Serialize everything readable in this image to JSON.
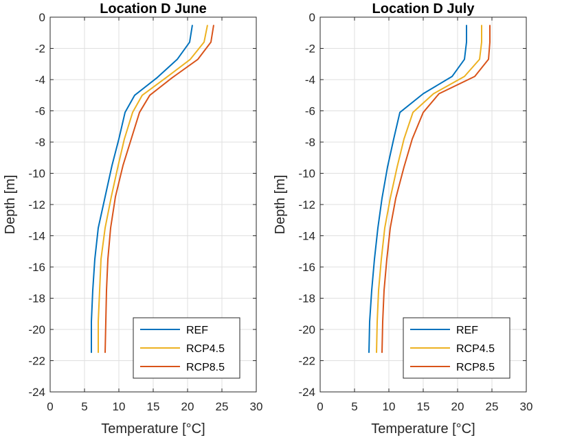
{
  "chart_data": [
    {
      "type": "line",
      "title": "Location D June",
      "xlabel": "Temperature [°C]",
      "ylabel": "Depth [m]",
      "xlim": [
        0,
        30
      ],
      "ylim": [
        -24,
        0
      ],
      "xticks": [
        0,
        5,
        10,
        15,
        20,
        25,
        30
      ],
      "yticks": [
        0,
        -2,
        -4,
        -6,
        -8,
        -10,
        -12,
        -14,
        -16,
        -18,
        -20,
        -22,
        -24
      ],
      "grid": true,
      "legend_position": "bottom-right",
      "series": [
        {
          "name": "REF",
          "color": "#0072BD",
          "points": [
            [
              20.7,
              -0.5
            ],
            [
              20.3,
              -1.6
            ],
            [
              18.5,
              -2.7
            ],
            [
              15.5,
              -3.9
            ],
            [
              12.3,
              -5.0
            ],
            [
              10.9,
              -6.1
            ],
            [
              10.0,
              -7.8
            ],
            [
              9.0,
              -9.5
            ],
            [
              8.0,
              -11.5
            ],
            [
              7.0,
              -13.5
            ],
            [
              6.5,
              -15.5
            ],
            [
              6.2,
              -17.5
            ],
            [
              6.0,
              -19.5
            ],
            [
              6.0,
              -21.5
            ]
          ]
        },
        {
          "name": "RCP4.5",
          "color": "#EDB120",
          "points": [
            [
              22.9,
              -0.5
            ],
            [
              22.4,
              -1.6
            ],
            [
              20.4,
              -2.7
            ],
            [
              16.8,
              -3.9
            ],
            [
              13.4,
              -5.0
            ],
            [
              12.0,
              -6.1
            ],
            [
              10.8,
              -7.8
            ],
            [
              9.9,
              -9.5
            ],
            [
              8.9,
              -11.5
            ],
            [
              8.0,
              -13.5
            ],
            [
              7.4,
              -15.5
            ],
            [
              7.2,
              -17.5
            ],
            [
              7.0,
              -19.5
            ],
            [
              7.0,
              -21.5
            ]
          ]
        },
        {
          "name": "RCP8.5",
          "color": "#D95319",
          "points": [
            [
              23.8,
              -0.5
            ],
            [
              23.4,
              -1.6
            ],
            [
              21.5,
              -2.7
            ],
            [
              17.7,
              -3.9
            ],
            [
              14.5,
              -5.0
            ],
            [
              13.0,
              -6.1
            ],
            [
              11.8,
              -7.8
            ],
            [
              10.6,
              -9.5
            ],
            [
              9.5,
              -11.5
            ],
            [
              8.8,
              -13.5
            ],
            [
              8.4,
              -15.5
            ],
            [
              8.2,
              -17.5
            ],
            [
              8.1,
              -19.5
            ],
            [
              8.0,
              -21.5
            ]
          ]
        }
      ]
    },
    {
      "type": "line",
      "title": "Location D July",
      "xlabel": "Temperature [°C]",
      "ylabel": "Depth [m]",
      "xlim": [
        0,
        30
      ],
      "ylim": [
        -24,
        0
      ],
      "xticks": [
        0,
        5,
        10,
        15,
        20,
        25,
        30
      ],
      "yticks": [
        0,
        -2,
        -4,
        -6,
        -8,
        -10,
        -12,
        -14,
        -16,
        -18,
        -20,
        -22,
        -24
      ],
      "grid": true,
      "legend_position": "bottom-right",
      "series": [
        {
          "name": "REF",
          "color": "#0072BD",
          "points": [
            [
              21.3,
              -0.5
            ],
            [
              21.3,
              -1.6
            ],
            [
              21.0,
              -2.7
            ],
            [
              19.2,
              -3.8
            ],
            [
              15.0,
              -4.9
            ],
            [
              11.6,
              -6.1
            ],
            [
              10.7,
              -7.8
            ],
            [
              9.8,
              -9.6
            ],
            [
              9.0,
              -11.6
            ],
            [
              8.4,
              -13.5
            ],
            [
              7.9,
              -15.5
            ],
            [
              7.5,
              -17.5
            ],
            [
              7.2,
              -19.5
            ],
            [
              7.1,
              -21.5
            ]
          ]
        },
        {
          "name": "RCP4.5",
          "color": "#EDB120",
          "points": [
            [
              23.5,
              -0.5
            ],
            [
              23.5,
              -1.6
            ],
            [
              23.2,
              -2.7
            ],
            [
              21.0,
              -3.8
            ],
            [
              16.5,
              -4.9
            ],
            [
              13.5,
              -6.1
            ],
            [
              12.2,
              -7.8
            ],
            [
              11.2,
              -9.6
            ],
            [
              10.2,
              -11.6
            ],
            [
              9.4,
              -13.5
            ],
            [
              8.9,
              -15.5
            ],
            [
              8.5,
              -17.5
            ],
            [
              8.3,
              -19.5
            ],
            [
              8.2,
              -21.5
            ]
          ]
        },
        {
          "name": "RCP8.5",
          "color": "#D95319",
          "points": [
            [
              24.7,
              -0.5
            ],
            [
              24.7,
              -1.6
            ],
            [
              24.5,
              -2.7
            ],
            [
              22.5,
              -3.8
            ],
            [
              17.3,
              -4.9
            ],
            [
              15.0,
              -6.1
            ],
            [
              13.4,
              -7.8
            ],
            [
              12.2,
              -9.6
            ],
            [
              11.0,
              -11.6
            ],
            [
              10.2,
              -13.5
            ],
            [
              9.7,
              -15.5
            ],
            [
              9.3,
              -17.5
            ],
            [
              9.1,
              -19.5
            ],
            [
              9.0,
              -21.5
            ]
          ]
        }
      ]
    }
  ]
}
